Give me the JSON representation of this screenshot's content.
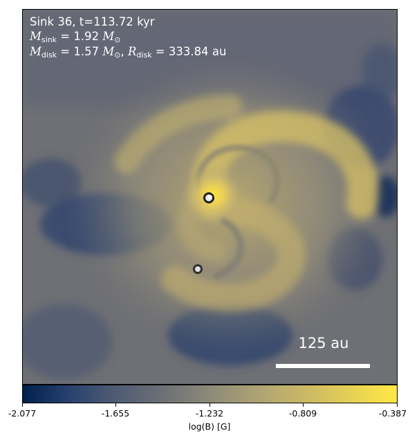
{
  "annotations": {
    "sink_line": "Sink 36, t=113.72 kyr",
    "m_sink_symbol": "M",
    "m_sink_sub": "sink",
    "m_sink_value": " = 1.92 ",
    "m_disk_symbol": "M",
    "m_disk_sub": "disk",
    "m_disk_value": " = 1.57 ",
    "r_disk_symbol": "R",
    "r_disk_sub": "disk",
    "r_disk_value": " = 333.84 au",
    "solar_mass": "M",
    "solar_sub": "⊙"
  },
  "scale_bar": {
    "label": "125 au"
  },
  "colorbar": {
    "label": "log(B) [G]",
    "ticks": [
      "-2.077",
      "-1.655",
      "-1.232",
      "-0.809",
      "-0.387"
    ]
  },
  "colors": {
    "low": "#00204c",
    "mid": "#7c7b78",
    "high": "#ffe945"
  }
}
